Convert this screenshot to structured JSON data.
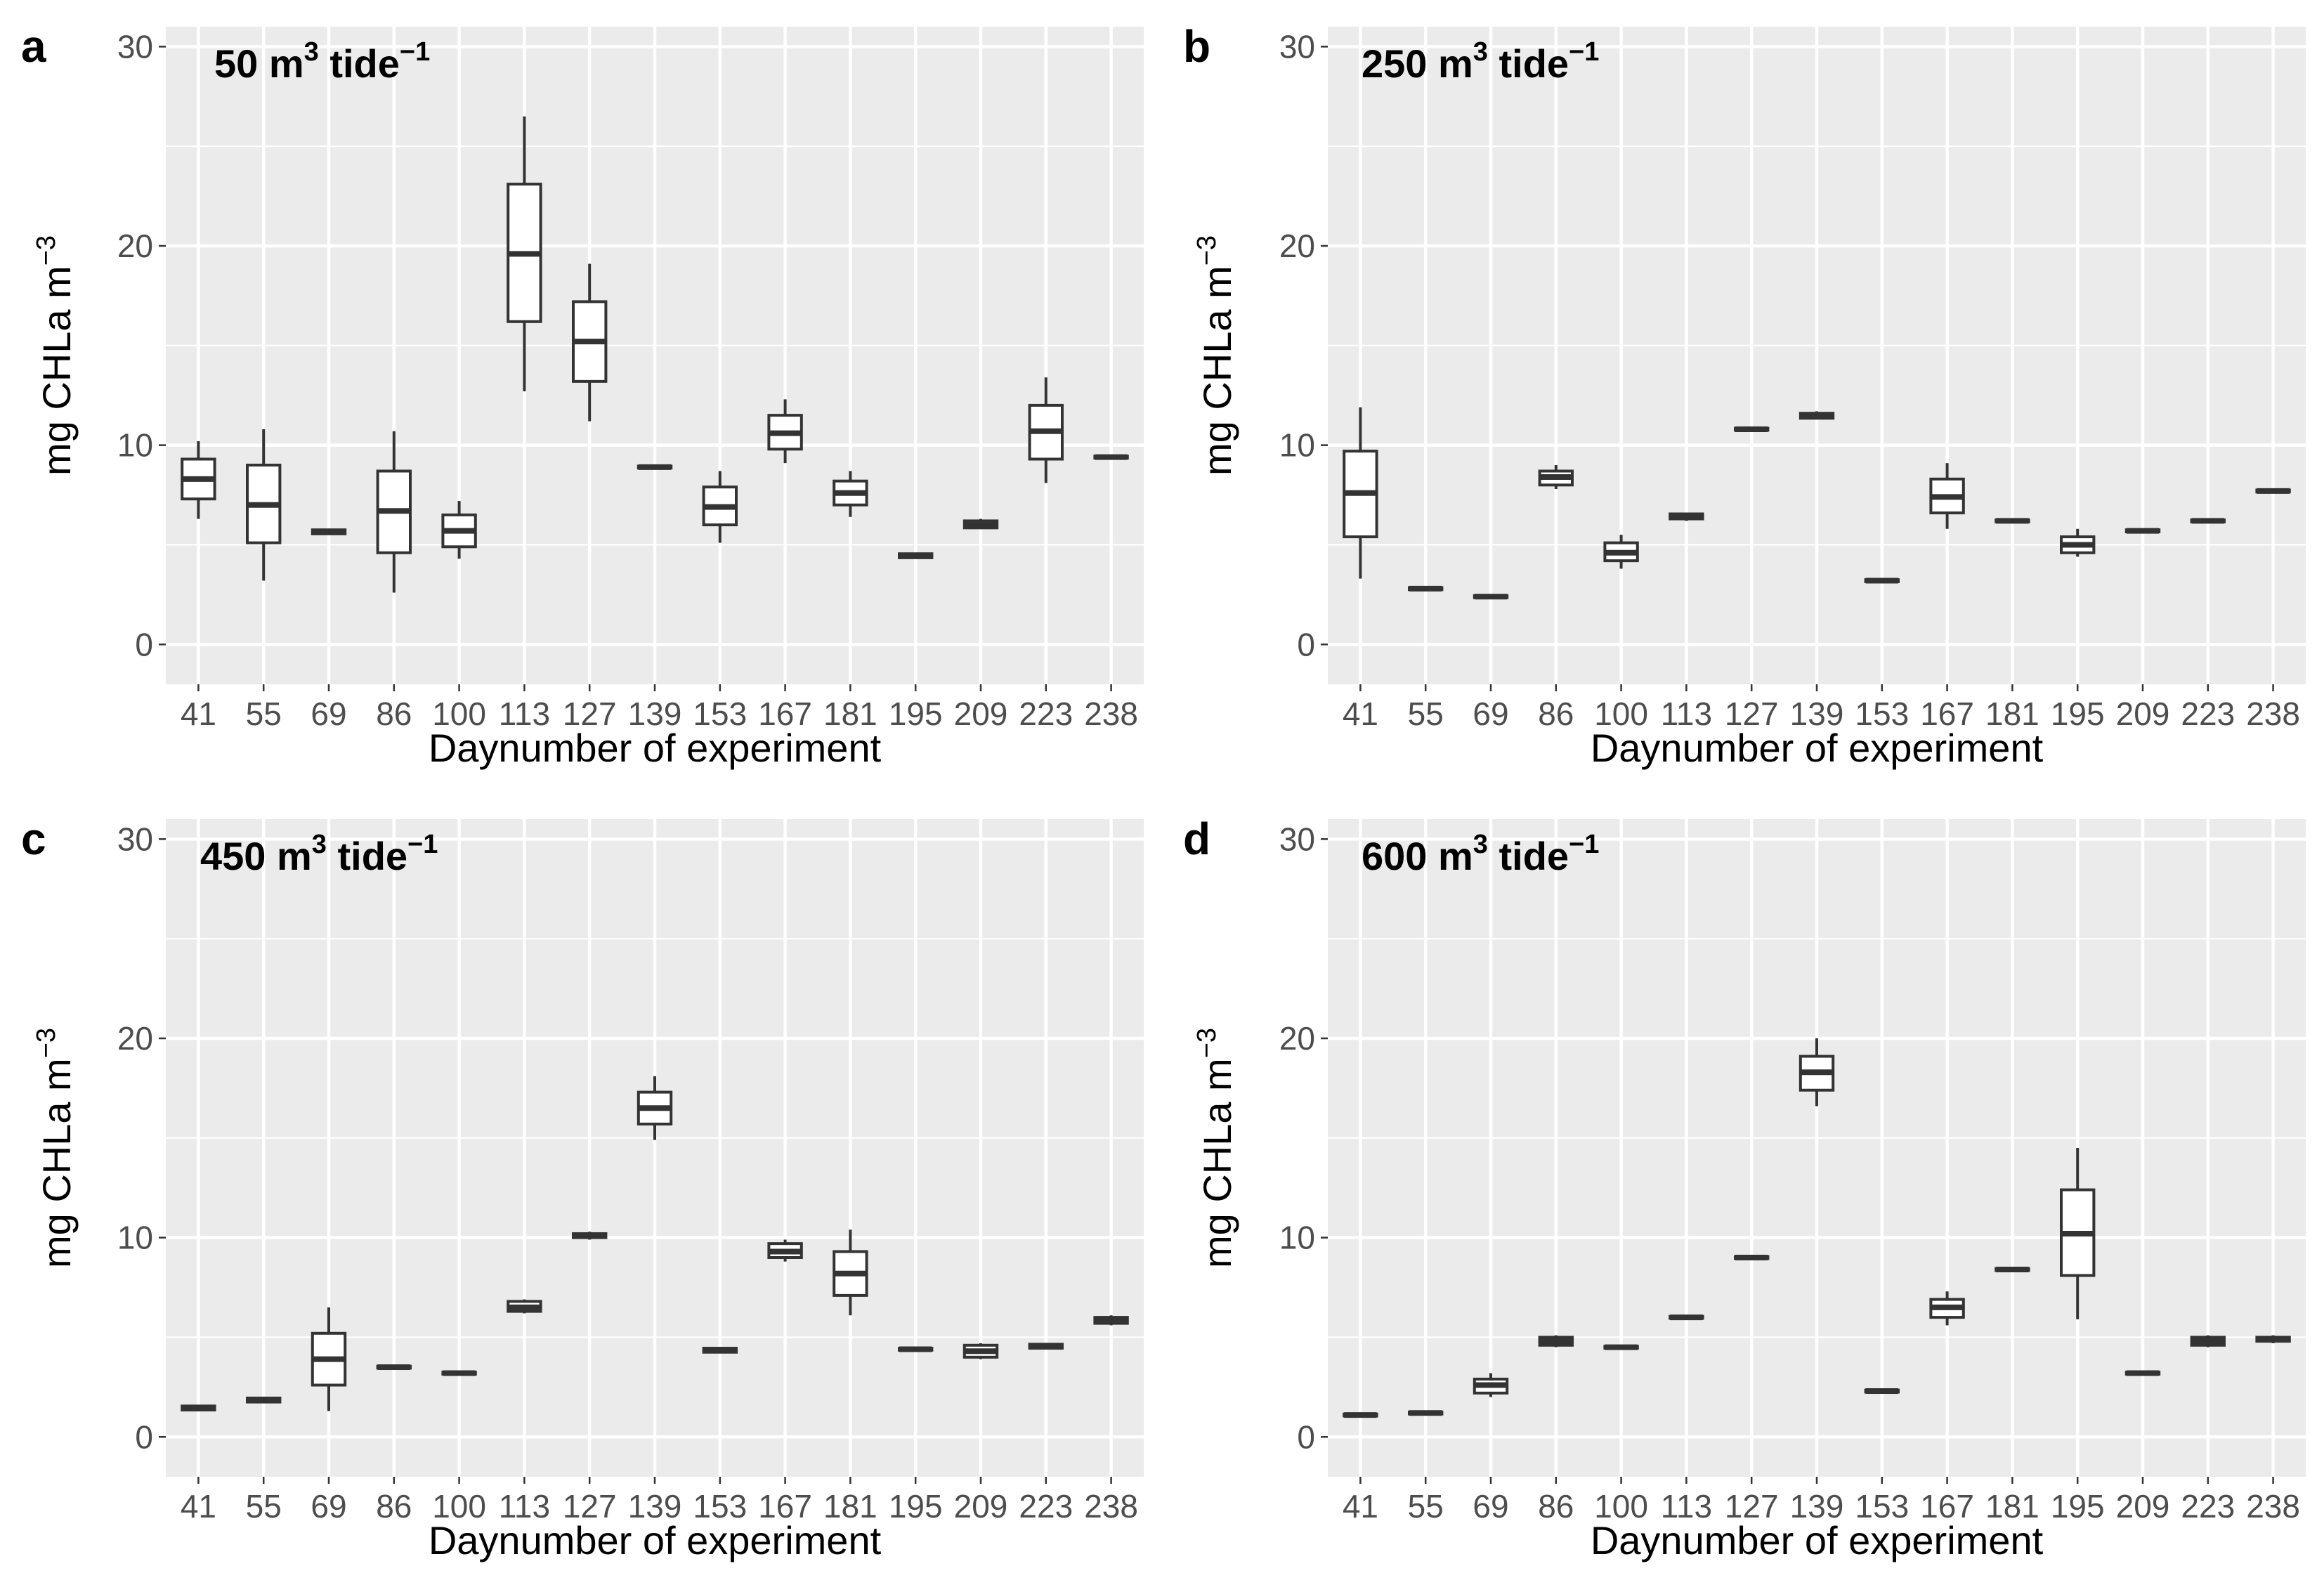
{
  "figure": {
    "xlabel": "Daynumber of experiment",
    "ylabel_main": "mg CHLa m",
    "ylabel_sup": "−3"
  },
  "chart_data": [
    {
      "type": "box",
      "panel": "a",
      "title_main": "50 m",
      "title_sup1": "3",
      "title_mid": " tide",
      "title_sup2": "−1",
      "xlabel": "Daynumber of experiment",
      "ylabel": "mg CHLa m−3",
      "ylim": [
        -2,
        31
      ],
      "yticks": [
        "0",
        "10",
        "20",
        "30"
      ],
      "categories": [
        "41",
        "55",
        "69",
        "86",
        "100",
        "113",
        "127",
        "139",
        "153",
        "167",
        "181",
        "195",
        "209",
        "223",
        "238"
      ],
      "boxes": [
        {
          "min": 6.3,
          "q1": 7.3,
          "median": 8.3,
          "q3": 9.3,
          "max": 10.2
        },
        {
          "min": 3.2,
          "q1": 5.1,
          "median": 7.0,
          "q3": 9.0,
          "max": 10.8
        },
        {
          "min": 5.5,
          "q1": 5.55,
          "median": 5.65,
          "q3": 5.75,
          "max": 5.8
        },
        {
          "min": 2.6,
          "q1": 4.6,
          "median": 6.7,
          "q3": 8.7,
          "max": 10.7
        },
        {
          "min": 4.3,
          "q1": 4.9,
          "median": 5.7,
          "q3": 6.5,
          "max": 7.2
        },
        {
          "min": 12.7,
          "q1": 16.2,
          "median": 19.6,
          "q3": 23.1,
          "max": 26.5
        },
        {
          "min": 11.2,
          "q1": 13.2,
          "median": 15.2,
          "q3": 17.2,
          "max": 19.1
        },
        {
          "min": 8.8,
          "q1": 8.85,
          "median": 8.9,
          "q3": 8.95,
          "max": 9.0
        },
        {
          "min": 5.1,
          "q1": 6.0,
          "median": 6.9,
          "q3": 7.9,
          "max": 8.7
        },
        {
          "min": 9.1,
          "q1": 9.8,
          "median": 10.6,
          "q3": 11.5,
          "max": 12.3
        },
        {
          "min": 6.4,
          "q1": 7.0,
          "median": 7.6,
          "q3": 8.2,
          "max": 8.7
        },
        {
          "min": 4.3,
          "q1": 4.35,
          "median": 4.45,
          "q3": 4.55,
          "max": 4.6
        },
        {
          "min": 5.8,
          "q1": 5.85,
          "median": 6.0,
          "q3": 6.2,
          "max": 6.3
        },
        {
          "min": 8.1,
          "q1": 9.3,
          "median": 10.7,
          "q3": 12.0,
          "max": 13.4
        },
        {
          "min": 9.3,
          "q1": 9.35,
          "median": 9.4,
          "q3": 9.45,
          "max": 9.5
        }
      ]
    },
    {
      "type": "box",
      "panel": "b",
      "title_main": "250 m",
      "title_sup1": "3",
      "title_mid": " tide",
      "title_sup2": "−1",
      "xlabel": "Daynumber of experiment",
      "ylabel": "mg CHLa m−3",
      "ylim": [
        -2,
        31
      ],
      "yticks": [
        "0",
        "10",
        "20",
        "30"
      ],
      "categories": [
        "41",
        "55",
        "69",
        "86",
        "100",
        "113",
        "127",
        "139",
        "153",
        "167",
        "181",
        "195",
        "209",
        "223",
        "238"
      ],
      "boxes": [
        {
          "min": 3.3,
          "q1": 5.4,
          "median": 7.6,
          "q3": 9.7,
          "max": 11.9
        },
        {
          "min": 2.7,
          "q1": 2.75,
          "median": 2.8,
          "q3": 2.85,
          "max": 2.9
        },
        {
          "min": 2.3,
          "q1": 2.35,
          "median": 2.4,
          "q3": 2.45,
          "max": 2.5
        },
        {
          "min": 7.8,
          "q1": 8.0,
          "median": 8.4,
          "q3": 8.7,
          "max": 9.0
        },
        {
          "min": 3.8,
          "q1": 4.2,
          "median": 4.6,
          "q3": 5.1,
          "max": 5.5
        },
        {
          "min": 6.2,
          "q1": 6.3,
          "median": 6.4,
          "q3": 6.55,
          "max": 6.6
        },
        {
          "min": 10.7,
          "q1": 10.75,
          "median": 10.8,
          "q3": 10.85,
          "max": 10.9
        },
        {
          "min": 11.3,
          "q1": 11.35,
          "median": 11.5,
          "q3": 11.6,
          "max": 11.7
        },
        {
          "min": 3.1,
          "q1": 3.15,
          "median": 3.2,
          "q3": 3.25,
          "max": 3.3
        },
        {
          "min": 5.8,
          "q1": 6.6,
          "median": 7.4,
          "q3": 8.3,
          "max": 9.1
        },
        {
          "min": 6.1,
          "q1": 6.15,
          "median": 6.2,
          "q3": 6.25,
          "max": 6.3
        },
        {
          "min": 4.4,
          "q1": 4.6,
          "median": 5.0,
          "q3": 5.4,
          "max": 5.8
        },
        {
          "min": 5.6,
          "q1": 5.65,
          "median": 5.7,
          "q3": 5.75,
          "max": 5.8
        },
        {
          "min": 6.1,
          "q1": 6.15,
          "median": 6.2,
          "q3": 6.25,
          "max": 6.3
        },
        {
          "min": 7.6,
          "q1": 7.65,
          "median": 7.7,
          "q3": 7.75,
          "max": 7.8
        }
      ]
    },
    {
      "type": "box",
      "panel": "c",
      "title_main": "450 m",
      "title_sup1": "3",
      "title_mid": " tide",
      "title_sup2": "−1",
      "xlabel": "Daynumber of experiment",
      "ylabel": "mg CHLa m−3",
      "ylim": [
        -2,
        31
      ],
      "yticks": [
        "0",
        "10",
        "20",
        "30"
      ],
      "categories": [
        "41",
        "55",
        "69",
        "86",
        "100",
        "113",
        "127",
        "139",
        "153",
        "167",
        "181",
        "195",
        "209",
        "223",
        "238"
      ],
      "boxes": [
        {
          "min": 1.3,
          "q1": 1.35,
          "median": 1.45,
          "q3": 1.55,
          "max": 1.6
        },
        {
          "min": 1.7,
          "q1": 1.75,
          "median": 1.85,
          "q3": 1.95,
          "max": 2.0
        },
        {
          "min": 1.3,
          "q1": 2.6,
          "median": 3.9,
          "q3": 5.2,
          "max": 6.5
        },
        {
          "min": 3.4,
          "q1": 3.45,
          "median": 3.5,
          "q3": 3.55,
          "max": 3.6
        },
        {
          "min": 3.1,
          "q1": 3.15,
          "median": 3.2,
          "q3": 3.25,
          "max": 3.3
        },
        {
          "min": 6.2,
          "q1": 6.3,
          "median": 6.5,
          "q3": 6.8,
          "max": 6.9
        },
        {
          "min": 9.9,
          "q1": 10.0,
          "median": 10.1,
          "q3": 10.2,
          "max": 10.3
        },
        {
          "min": 14.9,
          "q1": 15.7,
          "median": 16.5,
          "q3": 17.3,
          "max": 18.1
        },
        {
          "min": 4.2,
          "q1": 4.25,
          "median": 4.35,
          "q3": 4.45,
          "max": 4.5
        },
        {
          "min": 8.8,
          "q1": 9.0,
          "median": 9.3,
          "q3": 9.7,
          "max": 9.9
        },
        {
          "min": 6.1,
          "q1": 7.1,
          "median": 8.2,
          "q3": 9.3,
          "max": 10.4
        },
        {
          "min": 4.3,
          "q1": 4.35,
          "median": 4.4,
          "q3": 4.45,
          "max": 4.5
        },
        {
          "min": 3.9,
          "q1": 4.0,
          "median": 4.3,
          "q3": 4.6,
          "max": 4.7
        },
        {
          "min": 4.4,
          "q1": 4.45,
          "median": 4.55,
          "q3": 4.65,
          "max": 4.7
        },
        {
          "min": 5.6,
          "q1": 5.7,
          "median": 5.9,
          "q3": 6.0,
          "max": 6.1
        }
      ]
    },
    {
      "type": "box",
      "panel": "d",
      "title_main": "600 m",
      "title_sup1": "3",
      "title_mid": " tide",
      "title_sup2": "−1",
      "xlabel": "Daynumber of experiment",
      "ylabel": "mg CHLa m−3",
      "ylim": [
        -2,
        31
      ],
      "yticks": [
        "0",
        "10",
        "20",
        "30"
      ],
      "categories": [
        "41",
        "55",
        "69",
        "86",
        "100",
        "113",
        "127",
        "139",
        "153",
        "167",
        "181",
        "195",
        "209",
        "223",
        "238"
      ],
      "boxes": [
        {
          "min": 1.0,
          "q1": 1.05,
          "median": 1.1,
          "q3": 1.15,
          "max": 1.2
        },
        {
          "min": 1.1,
          "q1": 1.15,
          "median": 1.2,
          "q3": 1.25,
          "max": 1.3
        },
        {
          "min": 2.0,
          "q1": 2.2,
          "median": 2.6,
          "q3": 2.9,
          "max": 3.2
        },
        {
          "min": 4.5,
          "q1": 4.6,
          "median": 4.8,
          "q3": 5.0,
          "max": 5.1
        },
        {
          "min": 4.4,
          "q1": 4.45,
          "median": 4.5,
          "q3": 4.55,
          "max": 4.6
        },
        {
          "min": 5.9,
          "q1": 5.95,
          "median": 6.0,
          "q3": 6.05,
          "max": 6.1
        },
        {
          "min": 8.9,
          "q1": 8.95,
          "median": 9.0,
          "q3": 9.05,
          "max": 9.1
        },
        {
          "min": 16.6,
          "q1": 17.4,
          "median": 18.3,
          "q3": 19.1,
          "max": 20.0
        },
        {
          "min": 2.2,
          "q1": 2.25,
          "median": 2.3,
          "q3": 2.35,
          "max": 2.4
        },
        {
          "min": 5.6,
          "q1": 6.0,
          "median": 6.5,
          "q3": 6.9,
          "max": 7.3
        },
        {
          "min": 8.3,
          "q1": 8.35,
          "median": 8.4,
          "q3": 8.45,
          "max": 8.5
        },
        {
          "min": 5.9,
          "q1": 8.1,
          "median": 10.2,
          "q3": 12.4,
          "max": 14.5
        },
        {
          "min": 3.1,
          "q1": 3.15,
          "median": 3.2,
          "q3": 3.25,
          "max": 3.3
        },
        {
          "min": 4.5,
          "q1": 4.6,
          "median": 4.8,
          "q3": 5.0,
          "max": 5.1
        },
        {
          "min": 4.7,
          "q1": 4.8,
          "median": 4.9,
          "q3": 5.0,
          "max": 5.1
        }
      ]
    }
  ]
}
